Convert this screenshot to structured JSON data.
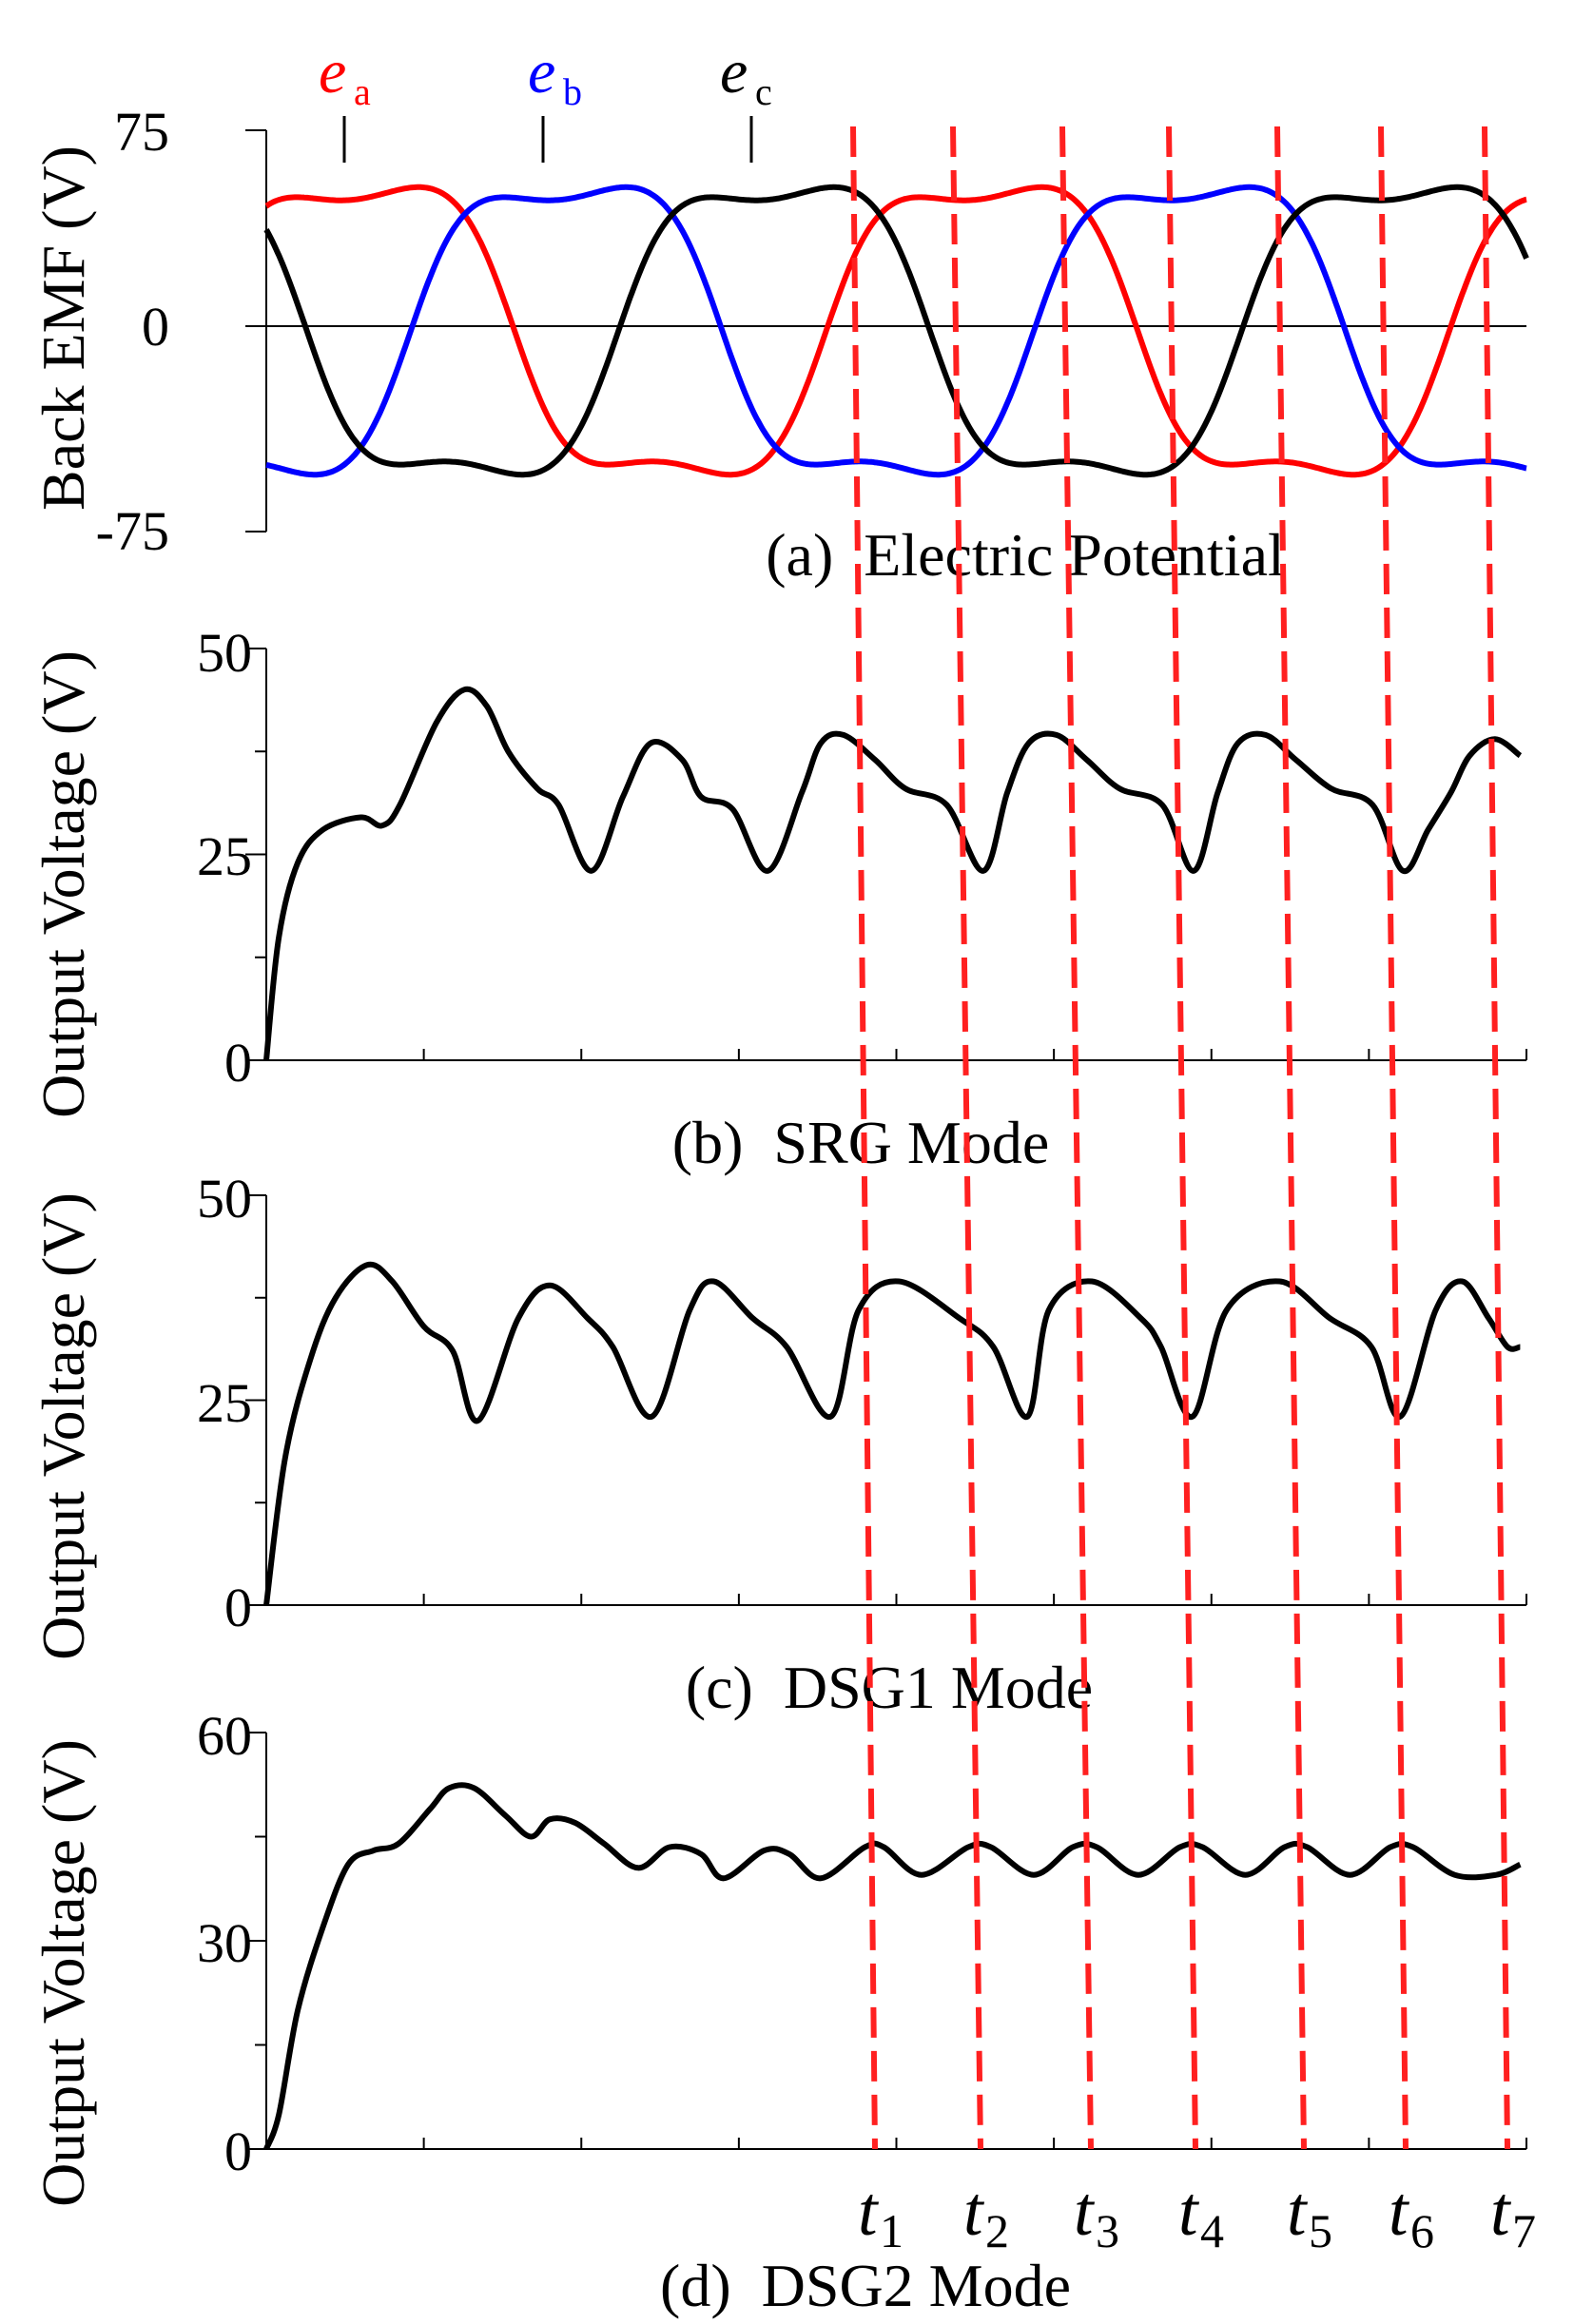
{
  "figure": {
    "colors": {
      "ea": "#ff0000",
      "eb": "#0000ff",
      "ec": "#000000",
      "marker": "#ff2020",
      "trace": "#000000"
    },
    "time_markers": [
      {
        "sym": "t",
        "sub": "1"
      },
      {
        "sym": "t",
        "sub": "2"
      },
      {
        "sym": "t",
        "sub": "3"
      },
      {
        "sym": "t",
        "sub": "4"
      },
      {
        "sym": "t",
        "sub": "5"
      },
      {
        "sym": "t",
        "sub": "6"
      },
      {
        "sym": "t",
        "sub": "7"
      }
    ]
  },
  "chart_data": [
    {
      "type": "line",
      "title": "(a)  Electric Potential",
      "ylabel": "Back EMF (V)",
      "xlabel": "",
      "ylim": [
        -75,
        75
      ],
      "yticks": [
        "75",
        "0",
        "-75"
      ],
      "x_range": [
        0,
        1
      ],
      "series": [
        {
          "name": "e_a",
          "label_sym": "e",
          "label_sub": "a",
          "phase_deg": 0
        },
        {
          "name": "e_b",
          "label_sym": "e",
          "label_sub": "b",
          "phase_deg": -120
        },
        {
          "name": "e_c",
          "label_sym": "e",
          "label_sub": "c",
          "phase_deg": 120
        }
      ],
      "waveform": "trapezoidal, peak ~ 60 V, period ~ 0.5 of the shown time span"
    },
    {
      "type": "line",
      "title": "(b)  SRG Mode",
      "ylabel": "Output Voltage (V)",
      "xlabel": "",
      "ylim": [
        0,
        50
      ],
      "yticks": [
        "50",
        "25",
        "0"
      ],
      "series": [
        {
          "name": "Output Voltage",
          "x": [
            0,
            0.01,
            0.025,
            0.045,
            0.075,
            0.092,
            0.106,
            0.135,
            0.157,
            0.175,
            0.192,
            0.215,
            0.232,
            0.258,
            0.283,
            0.305,
            0.33,
            0.345,
            0.37,
            0.398,
            0.425,
            0.44,
            0.458,
            0.483,
            0.507,
            0.54,
            0.569,
            0.588,
            0.605,
            0.627,
            0.651,
            0.677,
            0.711,
            0.736,
            0.755,
            0.771,
            0.793,
            0.817,
            0.845,
            0.878,
            0.902,
            0.922,
            0.94,
            0.955,
            0.975,
            0.995
          ],
          "y": [
            0,
            15,
            24,
            28,
            29.5,
            28.5,
            31,
            41,
            45,
            43,
            37.5,
            33,
            31,
            23,
            32,
            38.5,
            36.5,
            32,
            30.5,
            23,
            32.5,
            38.5,
            39.5,
            36.5,
            33,
            31,
            23,
            32.5,
            38.5,
            39.5,
            36.5,
            33,
            31,
            23,
            32.5,
            38.5,
            39.5,
            36.5,
            33,
            31,
            23,
            28,
            32.5,
            37,
            39,
            37
          ]
        }
      ]
    },
    {
      "type": "line",
      "title": "(c)  DSG1 Mode",
      "ylabel": "Output Voltage (V)",
      "xlabel": "",
      "ylim": [
        0,
        50
      ],
      "yticks": [
        "50",
        "25",
        "0"
      ],
      "series": [
        {
          "name": "Output Voltage",
          "x": [
            0,
            0.015,
            0.035,
            0.055,
            0.08,
            0.1,
            0.125,
            0.148,
            0.168,
            0.2,
            0.225,
            0.255,
            0.275,
            0.306,
            0.336,
            0.355,
            0.386,
            0.413,
            0.448,
            0.47,
            0.502,
            0.55,
            0.577,
            0.604,
            0.621,
            0.655,
            0.694,
            0.71,
            0.735,
            0.762,
            0.804,
            0.844,
            0.877,
            0.9,
            0.928,
            0.949,
            0.97,
            0.985,
            0.995
          ],
          "y": [
            0,
            18,
            30,
            37.5,
            41.5,
            39.5,
            34,
            31,
            22.5,
            35,
            39,
            35,
            31.5,
            23,
            36,
            39.5,
            35,
            31.5,
            23,
            36,
            39.5,
            35,
            31.5,
            23,
            36,
            39.5,
            35,
            31.5,
            23,
            36,
            39.5,
            35,
            31.5,
            23,
            36,
            39.5,
            35,
            31.5,
            31.5
          ]
        }
      ]
    },
    {
      "type": "line",
      "title": "(d)  DSG2 Mode",
      "ylabel": "Output Voltage (V)",
      "xlabel": "",
      "ylim": [
        0,
        60
      ],
      "yticks": [
        "60",
        "30",
        "0"
      ],
      "series": [
        {
          "name": "Output Voltage",
          "x": [
            0,
            0.01,
            0.025,
            0.045,
            0.065,
            0.085,
            0.105,
            0.13,
            0.145,
            0.165,
            0.19,
            0.21,
            0.225,
            0.245,
            0.268,
            0.295,
            0.32,
            0.345,
            0.363,
            0.395,
            0.415,
            0.44,
            0.475,
            0.49,
            0.52,
            0.557,
            0.575,
            0.609,
            0.64,
            0.659,
            0.692,
            0.725,
            0.743,
            0.777,
            0.808,
            0.826,
            0.86,
            0.892,
            0.91,
            0.943,
            0.976,
            0.995
          ],
          "y": [
            0,
            5,
            20,
            32,
            41,
            43,
            44,
            49,
            52,
            52,
            48,
            45,
            47.5,
            47,
            44,
            40.5,
            43.5,
            42.5,
            39,
            43,
            42.5,
            39,
            43.5,
            43.5,
            39.5,
            43.5,
            43.5,
            39.5,
            43.5,
            43.5,
            39.5,
            43.5,
            43.5,
            39.5,
            43.5,
            43.5,
            39.5,
            43.5,
            43.5,
            39.5,
            39.5,
            41
          ]
        }
      ]
    }
  ]
}
